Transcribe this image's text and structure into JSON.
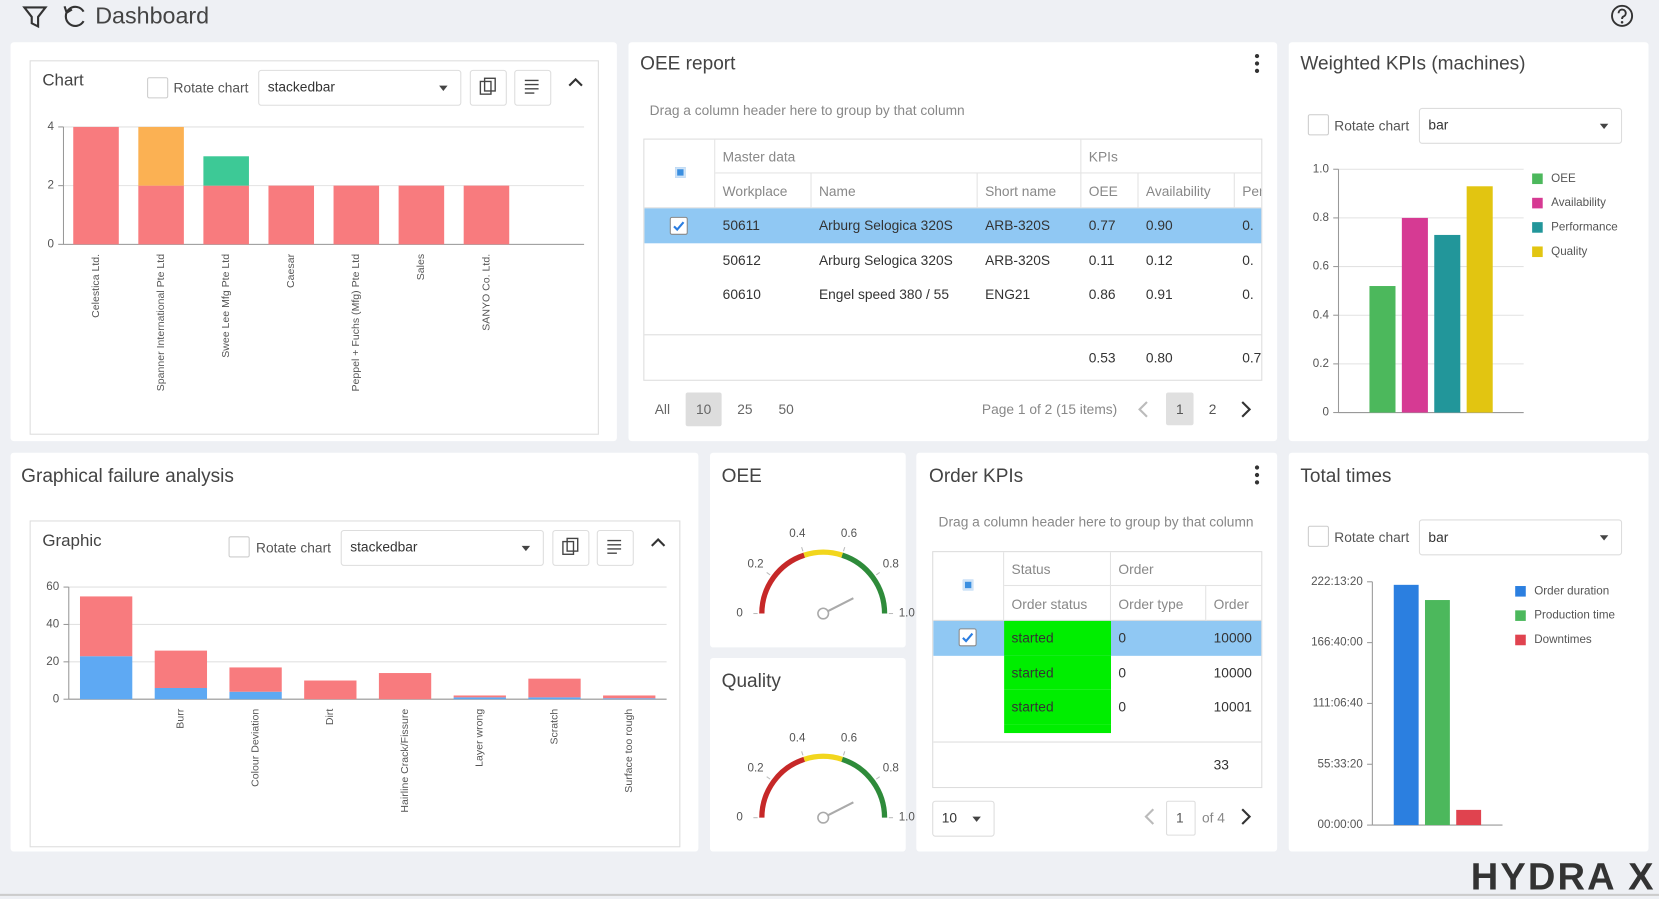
{
  "header": {
    "title": "Dashboard",
    "logo": "HYDRA X"
  },
  "chart_panel": {
    "title": "Chart",
    "rotate_label": "Rotate chart",
    "chart_type": "stackedbar",
    "chart_data": {
      "type": "bar",
      "stacked": true,
      "categories": [
        "Celestica Ltd.",
        "Spanner International Pte Ltd",
        "Swee Lee Mfg Pte Ltd",
        "Caesar",
        "Peppel + Fuchs (Mfg) Pte Ltd",
        "Sales",
        "SANYO Co. Ltd.",
        null
      ],
      "series": [
        {
          "color": "#f87b7e",
          "values": [
            4,
            2,
            2,
            2,
            2,
            2,
            2,
            null
          ]
        },
        {
          "color": "#fbb153",
          "values": [
            0,
            2,
            0,
            0,
            0,
            0,
            0,
            null
          ]
        },
        {
          "color": "#3dc996",
          "values": [
            0,
            0,
            1,
            0,
            0,
            0,
            0,
            null
          ]
        }
      ],
      "ylim": [
        0,
        4
      ],
      "yticks": [
        0,
        2,
        4
      ],
      "grid": true
    }
  },
  "oee_report": {
    "title": "OEE report",
    "group_hint": "Drag a column header here to group by that column",
    "column_groups": [
      "Master data",
      "KPIs"
    ],
    "columns": [
      "Workplace",
      "Name",
      "Short name",
      "OEE",
      "Availability",
      "Per"
    ],
    "rows": [
      [
        "50611",
        "Arburg Selogica 320S",
        "ARB-320S",
        "0.77",
        "0.90",
        "0."
      ],
      [
        "50612",
        "Arburg Selogica 320S",
        "ARB-320S",
        "0.11",
        "0.12",
        "0."
      ],
      [
        "60610",
        "Engel speed 380 / 55",
        "ENG21",
        "0.86",
        "0.91",
        "0."
      ]
    ],
    "totals": [
      "0.53",
      "0.80",
      "0.7"
    ],
    "page_sizes": [
      "All",
      "10",
      "25",
      "50"
    ],
    "page_info": "Page 1 of 2 (15 items)",
    "pages": [
      "1",
      "2"
    ]
  },
  "weighted_kpis": {
    "title": "Weighted KPIs (machines)",
    "rotate_label": "Rotate chart",
    "chart_type": "bar",
    "chart_data": {
      "type": "bar",
      "categories": [
        null
      ],
      "series": [
        {
          "name": "OEE",
          "color": "#4cb85c",
          "values": [
            0.52
          ]
        },
        {
          "name": "Availability",
          "color": "#d63a93",
          "values": [
            0.8
          ]
        },
        {
          "name": "Performance",
          "color": "#22969a",
          "values": [
            0.73
          ]
        },
        {
          "name": "Quality",
          "color": "#e2c511",
          "values": [
            0.93
          ]
        }
      ],
      "ylim": [
        0,
        1
      ],
      "yticks": [
        0,
        0.2,
        0.4,
        0.6,
        0.8,
        {
          "value": 1,
          "label": "1.0"
        }
      ],
      "grid": true,
      "legend": "right"
    }
  },
  "failure_analysis": {
    "title": "Graphical failure analysis",
    "subtitle": "Graphic",
    "rotate_label": "Rotate chart",
    "chart_type": "stackedbar",
    "chart_data": {
      "type": "bar",
      "stacked": true,
      "categories": [
        null,
        "Burr",
        "Colour Deviation",
        "Dirt",
        "Hairline Crack/Fissure",
        "Layer wrong",
        "Scratch",
        "Surface too rough"
      ],
      "series": [
        {
          "color": "#5ea9f3",
          "values": [
            23,
            6,
            4,
            0,
            0,
            1,
            1,
            0.5
          ]
        },
        {
          "color": "#f87b7e",
          "values": [
            32,
            20,
            13,
            10,
            14,
            1,
            10,
            1.5
          ]
        }
      ],
      "ylim": [
        0,
        60
      ],
      "yticks": [
        0,
        20,
        40,
        60
      ],
      "grid": true
    }
  },
  "oee_gauge": {
    "title": "OEE",
    "chart_data": {
      "type": "gauge",
      "value": 0.85,
      "range": [
        0,
        1
      ],
      "ticks": [
        0,
        0.2,
        0.4,
        0.6,
        0.8,
        {
          "value": 1,
          "label": "1.0"
        }
      ],
      "bands": [
        {
          "from": 0,
          "to": 0.4,
          "color": "#c62828"
        },
        {
          "from": 0.4,
          "to": 0.6,
          "color": "#f2d61d"
        },
        {
          "from": 0.6,
          "to": 1,
          "color": "#2e8b3a"
        }
      ]
    }
  },
  "quality_gauge": {
    "title": "Quality",
    "chart_data": {
      "type": "gauge",
      "value": 0.85,
      "range": [
        0,
        1
      ],
      "ticks": [
        0,
        0.2,
        0.4,
        0.6,
        0.8,
        {
          "value": 1,
          "label": "1.0"
        }
      ],
      "bands": [
        {
          "from": 0,
          "to": 0.4,
          "color": "#c62828"
        },
        {
          "from": 0.4,
          "to": 0.6,
          "color": "#f2d61d"
        },
        {
          "from": 0.6,
          "to": 1,
          "color": "#2e8b3a"
        }
      ]
    }
  },
  "order_kpis": {
    "title": "Order KPIs",
    "group_hint": "Drag a column header here to group by that column",
    "column_groups": [
      "Status",
      "Order"
    ],
    "columns": [
      "Order status",
      "Order type",
      "Order"
    ],
    "rows": [
      [
        "started",
        "0",
        "10000"
      ],
      [
        "started",
        "0",
        "10000"
      ],
      [
        "started",
        "0",
        "10001"
      ]
    ],
    "totals": [
      "33"
    ],
    "page_size": "10",
    "page": "1",
    "page_count": "of 4"
  },
  "total_times": {
    "title": "Total times",
    "rotate_label": "Rotate chart",
    "chart_type": "bar",
    "chart_data": {
      "type": "bar",
      "categories": [
        null
      ],
      "series": [
        {
          "name": "Order duration",
          "color": "#2b7fe0",
          "values": [
            790000
          ]
        },
        {
          "name": "Production time",
          "color": "#4cb85c",
          "values": [
            740000
          ]
        },
        {
          "name": "Downtimes",
          "color": "#e0434f",
          "values": [
            50000
          ]
        }
      ],
      "ylim": [
        0,
        800000
      ],
      "yticks": [
        {
          "value": 0,
          "label": "00:00:00"
        },
        {
          "value": 200000,
          "label": "55:33:20"
        },
        {
          "value": 400000,
          "label": "111:06:40"
        },
        {
          "value": 600000,
          "label": "166:40:00"
        },
        {
          "value": 800000,
          "label": "222:13:20"
        }
      ],
      "grid": false,
      "legend": "right"
    }
  }
}
